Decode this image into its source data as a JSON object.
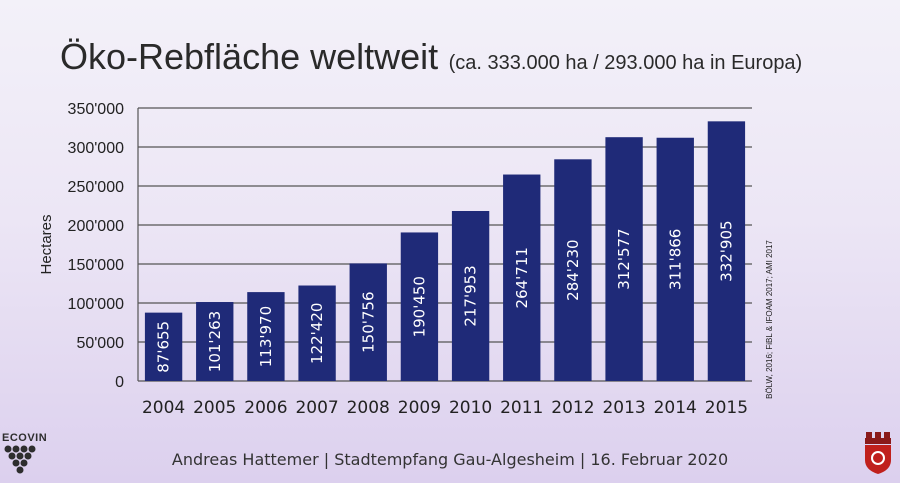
{
  "slide": {
    "title": "Öko-Rebfläche weltweit",
    "subtitle": "(ca. 333.000 ha / 293.000 ha in Europa)",
    "footer": "Andreas Hattemer | Stadtempfang Gau-Algesheim | 16. Februar 2020",
    "logo_left_text": "ECOVIN",
    "logo_left_icon": "grape-cluster-icon",
    "logo_right_icon": "coat-of-arms-icon"
  },
  "chart_data": {
    "type": "bar",
    "title": "",
    "xlabel": "",
    "ylabel": "Hectares",
    "categories": [
      "2004",
      "2005",
      "2006",
      "2007",
      "2008",
      "2009",
      "2010",
      "2011",
      "2012",
      "2013",
      "2014",
      "2015"
    ],
    "values": [
      87655,
      101263,
      113970,
      122420,
      150756,
      190450,
      217953,
      264711,
      284230,
      312577,
      311866,
      332905
    ],
    "value_labels": [
      "87'655",
      "101'263",
      "113'970",
      "122'420",
      "150'756",
      "190'450",
      "217'953",
      "264'711",
      "284'230",
      "312'577",
      "311'866",
      "332'905"
    ],
    "ylim": [
      0,
      350000
    ],
    "yticks": [
      0,
      50000,
      100000,
      150000,
      200000,
      250000,
      300000,
      350000
    ],
    "ytick_labels": [
      "0",
      "50'000",
      "100'000",
      "150'000",
      "200'000",
      "250'000",
      "300'000",
      "350'000"
    ],
    "grid": true,
    "bar_color": "#1f2a78",
    "source": "BÖLW, 2016; FiBL & IFOAM 2017; AMI 2017"
  }
}
